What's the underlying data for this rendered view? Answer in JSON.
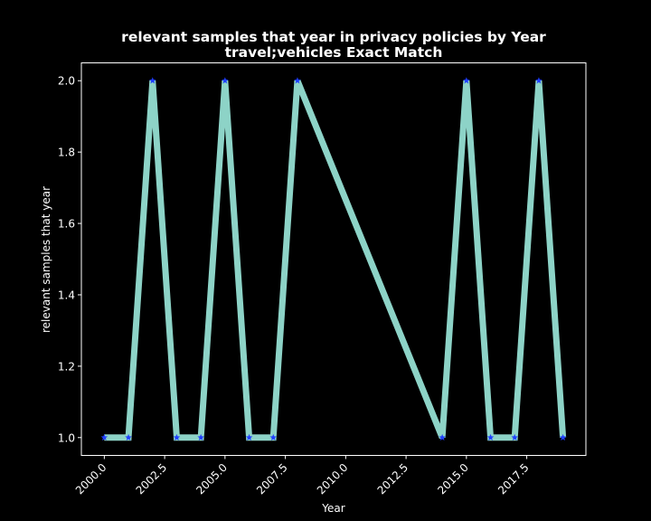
{
  "chart_data": {
    "type": "line",
    "title": "relevant samples that year in privacy policies by Year",
    "subtitle": "travel;vehicles Exact Match",
    "xlabel": "Year",
    "ylabel": "relevant samples that year",
    "x": [
      2000,
      2001,
      2002,
      2003,
      2004,
      2005,
      2006,
      2007,
      2008,
      2014,
      2015,
      2016,
      2017,
      2018,
      2019
    ],
    "y": [
      1,
      1,
      2,
      1,
      1,
      2,
      1,
      1,
      2,
      1,
      2,
      1,
      1,
      2,
      1
    ],
    "xlim": [
      1999.05,
      2019.95
    ],
    "ylim": [
      0.95,
      2.05
    ],
    "x_ticks": [
      2000.0,
      2002.5,
      2005.0,
      2007.5,
      2010.0,
      2012.5,
      2015.0,
      2017.5
    ],
    "x_tick_labels": [
      "2000.0",
      "2002.5",
      "2005.0",
      "2007.5",
      "2010.0",
      "2012.5",
      "2015.0",
      "2017.5"
    ],
    "y_ticks": [
      1.0,
      1.2,
      1.4,
      1.6,
      1.8,
      2.0
    ],
    "y_tick_labels": [
      "1.0",
      "1.2",
      "1.4",
      "1.6",
      "1.8",
      "2.0"
    ],
    "grid": false,
    "background": "#000000",
    "line_color": "#8dd3c7",
    "marker_color": "#1f3fff",
    "marker": "star"
  }
}
